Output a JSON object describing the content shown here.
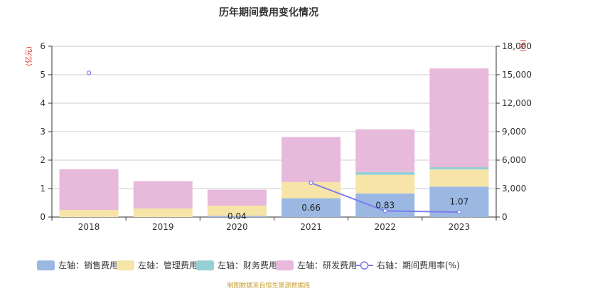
{
  "chart_data": {
    "type": "bar",
    "title": "历年期间费用变化情况",
    "left_axis_unit": "(亿元)",
    "right_axis_unit": "(%)",
    "categories": [
      "2018",
      "2019",
      "2020",
      "2021",
      "2022",
      "2023"
    ],
    "stacked": true,
    "ylim": [
      0,
      6
    ],
    "y_ticks": [
      "0",
      "1",
      "2",
      "3",
      "4",
      "5",
      "6"
    ],
    "y2lim": [
      0,
      18000
    ],
    "y2_ticks": [
      "0",
      "3,000",
      "6,000",
      "9,000",
      "12,000",
      "15,000",
      "18,000"
    ],
    "grid": true,
    "legend_position": "bottom",
    "series": [
      {
        "name": "左轴：销售费用",
        "axis": "left",
        "color": "#9bb8e3",
        "values": [
          0,
          0,
          0.04,
          0.66,
          0.83,
          1.07
        ],
        "labels": [
          "",
          "",
          "0.04",
          "0.66",
          "0.83",
          "1.07"
        ]
      },
      {
        "name": "左轴：管理费用",
        "axis": "left",
        "color": "#f7e5a8",
        "values": [
          0.25,
          0.3,
          0.36,
          0.57,
          0.65,
          0.6
        ]
      },
      {
        "name": "左轴：财务费用",
        "axis": "left",
        "color": "#96d0d6",
        "values": [
          0,
          0,
          0,
          0,
          0.1,
          0.08
        ]
      },
      {
        "name": "左轴：研发费用",
        "axis": "left",
        "color": "#e7b9da",
        "values": [
          1.43,
          0.96,
          0.56,
          1.58,
          1.5,
          3.47
        ]
      },
      {
        "name": "右轴：期间费用率(%)",
        "axis": "right",
        "type": "line",
        "color": "#7b7cf0",
        "values": [
          15200,
          null,
          null,
          3600,
          650,
          520
        ]
      }
    ],
    "source": "制图数据来自恒生聚源数据库"
  }
}
